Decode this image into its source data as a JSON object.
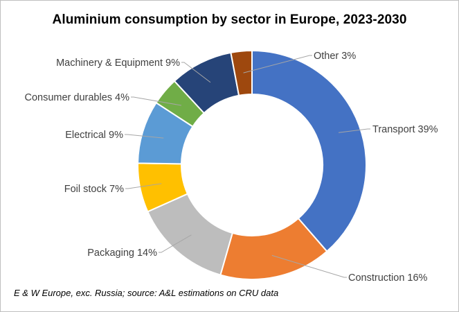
{
  "chart_data": {
    "type": "pie",
    "title": "Aluminium consumption by sector in Europe, 2023-2030",
    "source_note": "E & W Europe, exc. Russia; source: A&L estimations on CRU data",
    "unit": "%",
    "style": "donut",
    "start_angle_deg": 0,
    "direction": "clockwise",
    "slices": [
      {
        "label": "Transport",
        "value": 39,
        "color": "#4472C4"
      },
      {
        "label": "Construction",
        "value": 16,
        "color": "#ED7D31"
      },
      {
        "label": "Packaging",
        "value": 14,
        "color": "#BDBDBD"
      },
      {
        "label": "Foil stock",
        "value": 7,
        "color": "#FFC000"
      },
      {
        "label": "Electrical",
        "value": 9,
        "color": "#5B9BD5"
      },
      {
        "label": "Consumer durables",
        "value": 4,
        "color": "#70AD47"
      },
      {
        "label": "Machinery & Equipment",
        "value": 9,
        "color": "#264478"
      },
      {
        "label": "Other",
        "value": 3,
        "color": "#9E480E"
      }
    ]
  }
}
